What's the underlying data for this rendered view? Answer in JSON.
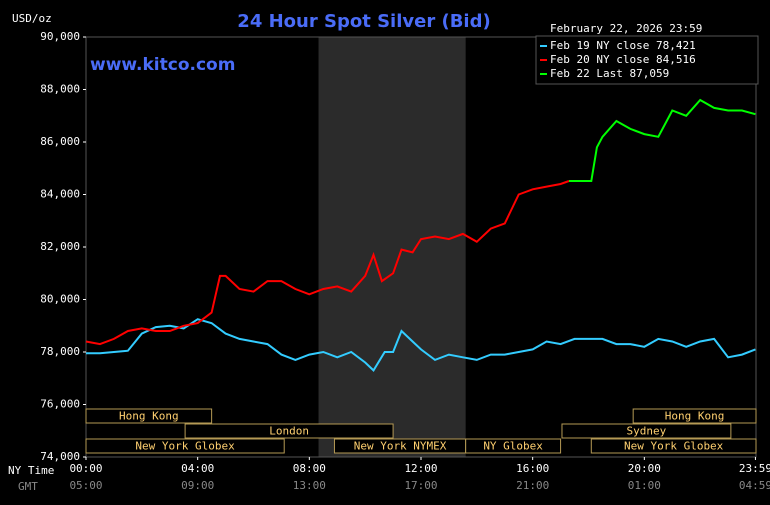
{
  "chart_data": {
    "type": "line",
    "title": "24 Hour Spot Silver (Bid)",
    "site": "www.kitco.com",
    "y_unit": "USD/oz",
    "timestamp": "February 22, 2026 23:59",
    "x_row_labels": [
      "NY Time",
      "GMT"
    ],
    "xlim": [
      0,
      24
    ],
    "xticks": [
      {
        "value": 0,
        "label": "00:00"
      },
      {
        "value": 4,
        "label": "04:00"
      },
      {
        "value": 8,
        "label": "08:00"
      },
      {
        "value": 12,
        "label": "12:00"
      },
      {
        "value": 16,
        "label": "16:00"
      },
      {
        "value": 20,
        "label": "20:00"
      },
      {
        "value": 23.98,
        "label": "23:59"
      }
    ],
    "gmt_tick_labels": [
      "05:00",
      "09:00",
      "13:00",
      "17:00",
      "21:00",
      "01:00",
      "04:59"
    ],
    "ylim": [
      74000,
      90000
    ],
    "yticks": [
      {
        "value": 74000,
        "label": "74,000"
      },
      {
        "value": 76000,
        "label": "76,000"
      },
      {
        "value": 78000,
        "label": "78,000"
      },
      {
        "value": 80000,
        "label": "80,000"
      },
      {
        "value": 82000,
        "label": "82,000"
      },
      {
        "value": 84000,
        "label": "84,000"
      },
      {
        "value": 86000,
        "label": "86,000"
      },
      {
        "value": 88000,
        "label": "88,000"
      },
      {
        "value": 90000,
        "label": "90,000"
      }
    ],
    "shaded_range": [
      8.33,
      13.6
    ],
    "shade_color": "#2b2b2b",
    "session_rows": [
      [
        {
          "label": "Hong Kong",
          "start": 0,
          "end": 4.5
        },
        {
          "label": "Hong Kong",
          "start": 19.6,
          "end": 24
        }
      ],
      [
        {
          "label": "London",
          "start": 3.55,
          "end": 11
        },
        {
          "label": "Sydney",
          "start": 17.05,
          "end": 23.1
        }
      ],
      [
        {
          "label": "New York Globex",
          "start": 0,
          "end": 7.1
        },
        {
          "label": "New York NYMEX",
          "start": 8.9,
          "end": 13.6
        },
        {
          "label": "NY Globex",
          "start": 13.6,
          "end": 17
        },
        {
          "label": "New York Globex",
          "start": 18.1,
          "end": 24
        }
      ]
    ],
    "series": [
      {
        "name": "Feb 19 NY close 78,421",
        "color": "#33ccff",
        "x": [
          0,
          0.5,
          1,
          1.5,
          2,
          2.5,
          3,
          3.5,
          4,
          4.5,
          5,
          5.5,
          6,
          6.5,
          7,
          7.5,
          8,
          8.5,
          9,
          9.5,
          10,
          10.3,
          10.7,
          11,
          11.3,
          11.7,
          12,
          12.5,
          13,
          13.5,
          14,
          14.5,
          15,
          15.5,
          16,
          16.5,
          17,
          17.5,
          18,
          18.5,
          19,
          19.5,
          20,
          20.5,
          21,
          21.5,
          22,
          22.5,
          23,
          23.5,
          23.98
        ],
        "values": [
          77950,
          77950,
          78000,
          78050,
          78700,
          78950,
          79000,
          78900,
          79250,
          79100,
          78700,
          78500,
          78400,
          78300,
          77900,
          77700,
          77900,
          78000,
          77800,
          78000,
          77600,
          77300,
          78000,
          78000,
          78800,
          78400,
          78100,
          77700,
          77900,
          77800,
          77700,
          77900,
          77900,
          78000,
          78100,
          78400,
          78300,
          78500,
          78500,
          78500,
          78300,
          78300,
          78200,
          78500,
          78400,
          78200,
          78400,
          78500,
          77800,
          77900,
          78100
        ]
      },
      {
        "name": "Feb 20 NY close 84,516",
        "color": "#ff0000",
        "x": [
          0,
          0.5,
          1,
          1.5,
          2,
          2.5,
          3,
          3.5,
          4,
          4.5,
          4.8,
          5,
          5.5,
          6,
          6.5,
          7,
          7.5,
          8,
          8.5,
          9,
          9.5,
          10,
          10.3,
          10.6,
          11,
          11.3,
          11.7,
          12,
          12.5,
          13,
          13.5,
          14,
          14.5,
          15,
          15.5,
          16,
          16.5,
          17,
          17.3
        ],
        "values": [
          78400,
          78300,
          78500,
          78800,
          78900,
          78800,
          78800,
          79000,
          79100,
          79500,
          80900,
          80900,
          80400,
          80300,
          80700,
          80700,
          80400,
          80200,
          80400,
          80500,
          80300,
          80900,
          81700,
          80700,
          81000,
          81900,
          81800,
          82300,
          82400,
          82300,
          82500,
          82200,
          82700,
          82900,
          84000,
          84200,
          84300,
          84400,
          84516
        ]
      },
      {
        "name": "Feb 22 Last 87,059",
        "color": "#00ff00",
        "x": [
          17.3,
          18.1,
          18.3,
          18.5,
          19,
          19.5,
          20,
          20.5,
          21,
          21.5,
          22,
          22.5,
          23,
          23.5,
          23.98
        ],
        "values": [
          84516,
          84516,
          85800,
          86200,
          86800,
          86500,
          86300,
          86200,
          87200,
          87000,
          87600,
          87300,
          87200,
          87200,
          87059
        ]
      }
    ]
  }
}
